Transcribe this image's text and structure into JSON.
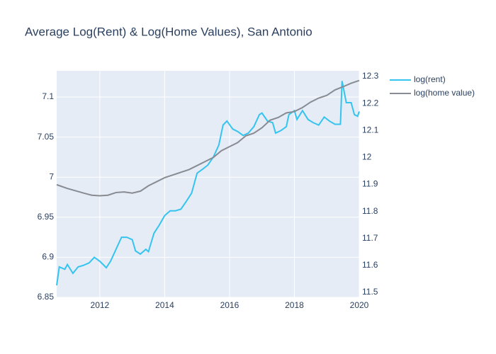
{
  "chart_data": {
    "type": "line",
    "title": "Average Log(Rent) & Log(Home Values), San Antonio",
    "xlim": [
      2010.67,
      2020
    ],
    "xticks": [
      2012,
      2014,
      2016,
      2018,
      2020
    ],
    "ylim": [
      6.85,
      7.1327
    ],
    "yticks": [
      6.85,
      6.9,
      6.95,
      7,
      7.05,
      7.1
    ],
    "y2lim": [
      11.4816,
      12.321
    ],
    "y2ticks": [
      11.5,
      11.6,
      11.7,
      11.8,
      11.9,
      12,
      12.1,
      12.2,
      12.3
    ],
    "grid": true,
    "legend": "right",
    "series": [
      {
        "name": "log(rent)",
        "color": "#35c4ef",
        "x": [
          2010.67,
          2010.75,
          2010.92,
          2011.0,
          2011.17,
          2011.33,
          2011.5,
          2011.67,
          2011.83,
          2012.0,
          2012.2,
          2012.33,
          2012.5,
          2012.67,
          2012.83,
          2013.0,
          2013.1,
          2013.25,
          2013.42,
          2013.5,
          2013.67,
          2013.83,
          2014.0,
          2014.17,
          2014.33,
          2014.5,
          2014.67,
          2014.83,
          2015.0,
          2015.17,
          2015.33,
          2015.5,
          2015.67,
          2015.8,
          2015.92,
          2016.1,
          2016.25,
          2016.42,
          2016.58,
          2016.75,
          2016.92,
          2017.0,
          2017.17,
          2017.33,
          2017.42,
          2017.58,
          2017.75,
          2017.83,
          2018.0,
          2018.08,
          2018.25,
          2018.42,
          2018.58,
          2018.75,
          2018.92,
          2019.08,
          2019.25,
          2019.42,
          2019.47,
          2019.6,
          2019.75,
          2019.85,
          2019.95,
          2020.0
        ],
        "values": [
          6.865,
          6.888,
          6.885,
          6.891,
          6.88,
          6.888,
          6.89,
          6.893,
          6.9,
          6.895,
          6.887,
          6.895,
          6.91,
          6.925,
          6.925,
          6.922,
          6.908,
          6.904,
          6.91,
          6.907,
          6.93,
          6.94,
          6.952,
          6.958,
          6.958,
          6.96,
          6.97,
          6.98,
          7.005,
          7.01,
          7.015,
          7.025,
          7.04,
          7.065,
          7.07,
          7.06,
          7.057,
          7.052,
          7.055,
          7.063,
          7.078,
          7.08,
          7.07,
          7.068,
          7.055,
          7.058,
          7.063,
          7.078,
          7.083,
          7.072,
          7.083,
          7.072,
          7.068,
          7.065,
          7.075,
          7.07,
          7.066,
          7.066,
          7.12,
          7.093,
          7.093,
          7.078,
          7.076,
          7.082
        ]
      },
      {
        "name": "log(home value)",
        "color": "#888b91",
        "axis": "y2",
        "x": [
          2010.67,
          2011.0,
          2011.5,
          2011.75,
          2012.0,
          2012.25,
          2012.5,
          2012.75,
          2013.0,
          2013.25,
          2013.5,
          2013.75,
          2014.0,
          2014.25,
          2014.5,
          2014.75,
          2015.0,
          2015.25,
          2015.5,
          2015.75,
          2016.0,
          2016.25,
          2016.5,
          2016.75,
          2017.0,
          2017.25,
          2017.5,
          2017.75,
          2018.0,
          2018.25,
          2018.5,
          2018.75,
          2019.0,
          2019.25,
          2019.5,
          2019.75,
          2020.0
        ],
        "values": [
          11.899,
          11.885,
          11.868,
          11.86,
          11.858,
          11.86,
          11.87,
          11.872,
          11.868,
          11.875,
          11.895,
          11.91,
          11.925,
          11.935,
          11.945,
          11.955,
          11.97,
          11.985,
          12.0,
          12.025,
          12.04,
          12.055,
          12.08,
          12.09,
          12.11,
          12.138,
          12.148,
          12.165,
          12.17,
          12.185,
          12.205,
          12.22,
          12.23,
          12.25,
          12.262,
          12.275,
          12.285
        ]
      }
    ]
  }
}
